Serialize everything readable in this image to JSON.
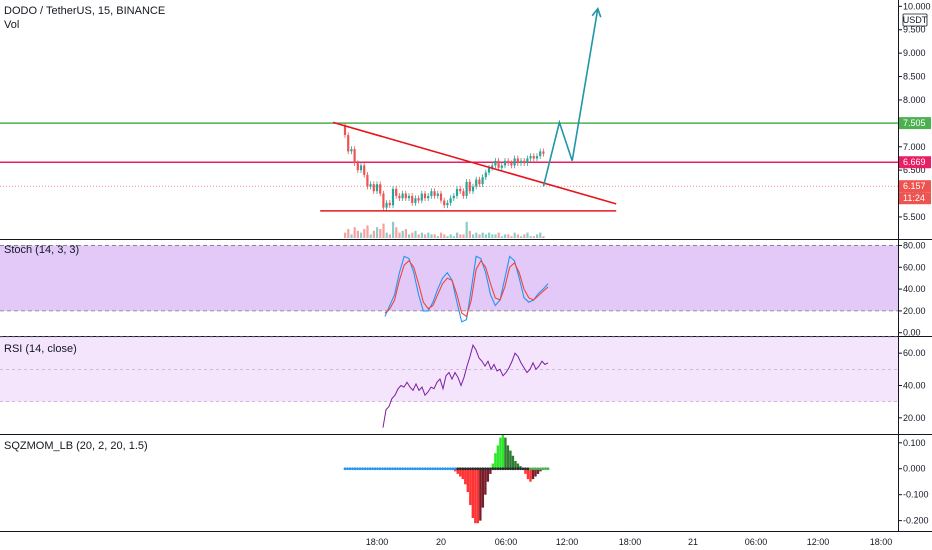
{
  "header": {
    "symbol": "DODO / TetherUS, 15, BINANCE",
    "volume_label": "Vol"
  },
  "colors": {
    "bull": "#26a69a",
    "bear": "#ef5350",
    "trendline": "#e8141d",
    "resistance_green": "#4caf50",
    "resistance_pink": "#e91e63",
    "projection": "#2196a8",
    "stoch_k": "#2196f3",
    "stoch_d": "#f44336",
    "stoch_band": "#d9b7f6",
    "rsi_line": "#7b1fa2",
    "rsi_band": "#f1ddfb",
    "mom_lime": "#2ee62b",
    "mom_green": "#2e7d32",
    "mom_red": "#ff3333",
    "mom_maroon": "#7a1d2a"
  },
  "chart_data": [
    {
      "type": "candlestick",
      "title": "DODO / TetherUS, 15, BINANCE",
      "y_ticks": [
        "10.000",
        "9.500",
        "9.000",
        "8.500",
        "8.000",
        "7.500",
        "7.000",
        "6.500",
        "6.000",
        "5.500"
      ],
      "ylim": [
        5.2,
        10.05
      ],
      "x_ticks": [
        "18:00",
        "20",
        "06:00",
        "12:00",
        "18:00",
        "21",
        "06:00",
        "12:00",
        "18:00"
      ],
      "currency_label": "USDT",
      "price_labels": [
        {
          "text": "7.505",
          "value": 7.505,
          "color": "#4caf50"
        },
        {
          "text": "6.669",
          "value": 6.669,
          "color": "#e91e63"
        },
        {
          "text": "6.157",
          "value": 6.157,
          "color": "#ef5350"
        },
        {
          "text": "11:24",
          "value": 5.9,
          "color": "#ef5350"
        }
      ],
      "horizontal_lines": [
        {
          "value": 7.505,
          "color": "#4caf50"
        },
        {
          "value": 6.669,
          "color": "#e91e63"
        }
      ],
      "trendlines": [
        {
          "from": [
            0,
            7.52
          ],
          "to": [
            81,
            5.78
          ]
        },
        {
          "from": [
            -4,
            5.63
          ],
          "to": [
            81,
            5.63
          ]
        }
      ],
      "projection": [
        [
          62,
          6.15
        ],
        [
          67,
          7.52
        ],
        [
          71,
          6.7
        ],
        [
          79,
          9.95
        ]
      ],
      "candles_start_value": 7.45,
      "candles": [
        -0.2,
        -0.35,
        0.05,
        -0.3,
        -0.15,
        0.1,
        -0.2,
        -0.25,
        0.05,
        -0.15,
        0.15,
        -0.2,
        -0.3,
        0.1,
        -0.05,
        0.35,
        -0.15,
        -0.05,
        0.1,
        -0.1,
        0.05,
        -0.15,
        0.1,
        -0.05,
        0.15,
        -0.1,
        0.05,
        0.1,
        -0.1,
        0.05,
        -0.15,
        -0.1,
        0.05,
        0.1,
        0.05,
        0.15,
        -0.05,
        -0.1,
        0.3,
        -0.2,
        0.1,
        0.15,
        -0.1,
        0.15,
        0.1,
        0.1,
        0.05,
        0.1,
        -0.15,
        0.05,
        0.1,
        -0.05,
        -0.05,
        0.15,
        -0.1,
        0.05,
        -0.05,
        0.1,
        0.05,
        -0.05,
        0.05,
        0.1,
        -0.05
      ],
      "volumes": [
        0.3,
        0.5,
        0.2,
        0.6,
        0.4,
        0.3,
        0.5,
        0.7,
        0.2,
        0.4,
        0.6,
        0.5,
        0.8,
        0.3,
        0.2,
        0.9,
        0.6,
        0.3,
        0.4,
        0.5,
        0.2,
        0.3,
        0.4,
        0.2,
        0.3,
        0.2,
        0.3,
        0.2,
        0.2,
        0.1,
        0.3,
        0.2,
        0.1,
        0.2,
        0.1,
        0.3,
        0.2,
        0.2,
        0.9,
        0.4,
        0.2,
        0.3,
        0.2,
        0.3,
        0.2,
        0.3,
        0.2,
        0.2,
        0.3,
        0.1,
        0.2,
        0.2,
        0.1,
        0.3,
        0.2,
        0.1,
        0.2,
        0.3,
        0.1,
        0.1,
        0.2,
        0.3,
        0.1
      ]
    },
    {
      "type": "line",
      "title": "Stoch (14, 3, 3)",
      "y_ticks": [
        "80.00",
        "60.00",
        "40.00",
        "20.00",
        "0.00"
      ],
      "ylim": [
        -3,
        85
      ],
      "band": [
        20,
        80
      ],
      "series": [
        {
          "values": [
            15,
            25,
            35,
            55,
            70,
            68,
            55,
            35,
            20,
            20,
            28,
            40,
            50,
            55,
            48,
            28,
            10,
            12,
            40,
            70,
            68,
            55,
            35,
            25,
            30,
            50,
            70,
            66,
            50,
            32,
            28,
            30,
            36,
            40,
            45
          ]
        },
        {
          "values": [
            18,
            22,
            30,
            48,
            62,
            66,
            60,
            45,
            28,
            22,
            25,
            35,
            45,
            50,
            48,
            35,
            18,
            15,
            30,
            58,
            66,
            60,
            45,
            32,
            30,
            42,
            60,
            64,
            55,
            40,
            32,
            30,
            34,
            38,
            42
          ]
        }
      ]
    },
    {
      "type": "line",
      "title": "RSI (14, close)",
      "y_ticks": [
        "60.00",
        "40.00",
        "20.00"
      ],
      "ylim": [
        10,
        70
      ],
      "band": [
        30,
        70
      ],
      "series": [
        {
          "values": [
            14,
            25,
            27,
            32,
            34,
            38,
            40,
            39,
            42,
            39,
            37,
            41,
            37,
            39,
            34,
            36,
            39,
            38,
            42,
            44,
            38,
            46,
            48,
            44,
            48,
            45,
            40,
            45,
            52,
            58,
            65,
            62,
            57,
            55,
            52,
            55,
            50,
            53,
            49,
            50,
            46,
            48,
            51,
            55,
            60,
            58,
            54,
            51,
            48,
            50,
            54,
            50,
            52,
            55,
            53,
            54
          ]
        }
      ]
    },
    {
      "type": "bar",
      "title": "SQZMOM_LB (20, 2, 20, 1.5)",
      "y_ticks": [
        "0.100",
        "0.000",
        "-0.100",
        "-0.200"
      ],
      "ylim": [
        -0.24,
        0.13
      ],
      "values": [
        0,
        0,
        0,
        0,
        0,
        0,
        0,
        0,
        0,
        0,
        0,
        0,
        0,
        0,
        0,
        0,
        0,
        0,
        0,
        0,
        0,
        0,
        0,
        0,
        0,
        0,
        0,
        0,
        0,
        0,
        0,
        0,
        0,
        0,
        0,
        0,
        0,
        0,
        0,
        0,
        0,
        0,
        0,
        -0.005,
        -0.01,
        -0.02,
        -0.03,
        -0.04,
        -0.06,
        -0.09,
        -0.14,
        -0.19,
        -0.21,
        -0.21,
        -0.2,
        -0.15,
        -0.1,
        -0.05,
        -0.02,
        0.02,
        0.06,
        0.09,
        0.12,
        0.13,
        0.12,
        0.09,
        0.07,
        0.05,
        0.03,
        0.02,
        0.01,
        0,
        -0.02,
        -0.04,
        -0.05,
        -0.04,
        -0.03,
        -0.02,
        -0.01,
        0,
        0.005,
        0
      ]
    }
  ]
}
